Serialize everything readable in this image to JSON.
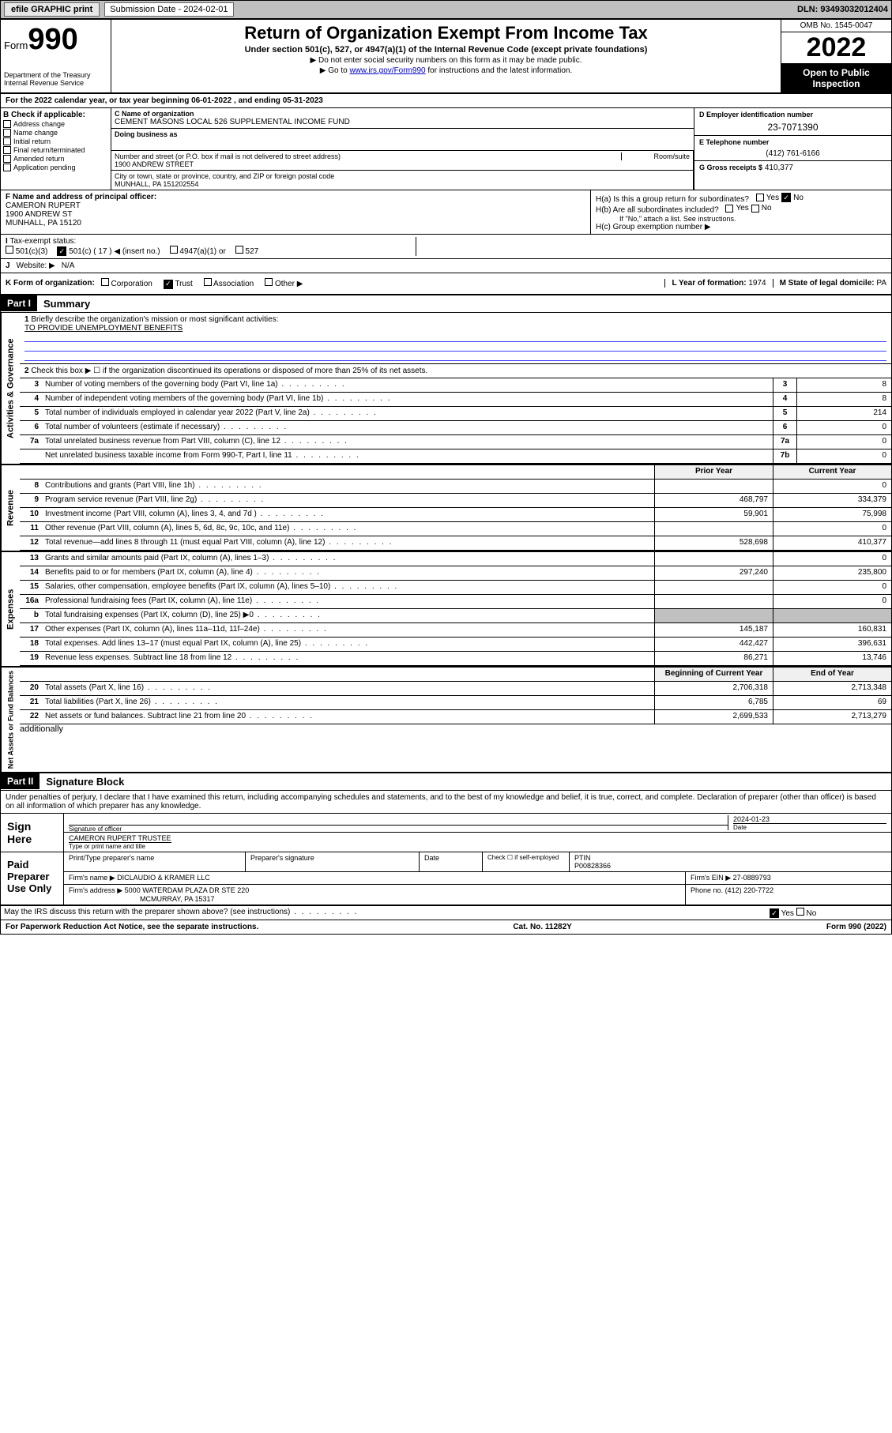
{
  "topbar": {
    "efile": "efile GRAPHIC print",
    "sub_label": "Submission Date - 2024-02-01",
    "dln": "DLN: 93493032012404"
  },
  "header": {
    "form_word": "Form",
    "form_num": "990",
    "dept": "Department of the Treasury",
    "irs": "Internal Revenue Service",
    "title": "Return of Organization Exempt From Income Tax",
    "sub": "Under section 501(c), 527, or 4947(a)(1) of the Internal Revenue Code (except private foundations)",
    "note1": "▶ Do not enter social security numbers on this form as it may be made public.",
    "note2_pre": "▶ Go to ",
    "note2_link": "www.irs.gov/Form990",
    "note2_post": " for instructions and the latest information.",
    "omb": "OMB No. 1545-0047",
    "year": "2022",
    "inspect": "Open to Public Inspection"
  },
  "A": "For the 2022 calendar year, or tax year beginning 06-01-2022    , and ending 05-31-2023",
  "B": {
    "hdr": "B Check if applicable:",
    "items": [
      "Address change",
      "Name change",
      "Initial return",
      "Final return/terminated",
      "Amended return",
      "Application pending"
    ]
  },
  "C": {
    "name_lbl": "C Name of organization",
    "name": "CEMENT MASONS LOCAL 526 SUPPLEMENTAL INCOME FUND",
    "dba_lbl": "Doing business as",
    "street_lbl": "Number and street (or P.O. box if mail is not delivered to street address)",
    "room_lbl": "Room/suite",
    "street": "1900 ANDREW STREET",
    "city_lbl": "City or town, state or province, country, and ZIP or foreign postal code",
    "city": "MUNHALL, PA  151202554"
  },
  "D": {
    "lbl": "D Employer identification number",
    "val": "23-7071390"
  },
  "E": {
    "lbl": "E Telephone number",
    "val": "(412) 761-6166"
  },
  "G": {
    "lbl": "G Gross receipts $",
    "val": "410,377"
  },
  "F": {
    "lbl": "F  Name and address of principal officer:",
    "name": "CAMERON RUPERT",
    "addr1": "1900 ANDREW ST",
    "addr2": "MUNHALL, PA  15120"
  },
  "H": {
    "a": "H(a)  Is this a group return for subordinates?",
    "b": "H(b)  Are all subordinates included?",
    "b_note": "If \"No,\" attach a list. See instructions.",
    "c": "H(c)  Group exemption number ▶"
  },
  "I": {
    "lbl": "Tax-exempt status:",
    "opts": [
      "501(c)(3)",
      "501(c) ( 17 ) ◀ (insert no.)",
      "4947(a)(1) or",
      "527"
    ]
  },
  "J": {
    "lbl": "Website: ▶",
    "val": "N/A"
  },
  "K": {
    "lbl": "K Form of organization:",
    "opts": [
      "Corporation",
      "Trust",
      "Association",
      "Other ▶"
    ]
  },
  "L": {
    "lbl": "L Year of formation:",
    "val": "1974"
  },
  "M": {
    "lbl": "M State of legal domicile:",
    "val": "PA"
  },
  "partI": {
    "hdr": "Part I",
    "title": "Summary",
    "line1_lbl": "Briefly describe the organization's mission or most significant activities:",
    "line1_val": "TO PROVIDE UNEMPLOYMENT BENEFITS",
    "line2": "Check this box ▶ ☐  if the organization discontinued its operations or disposed of more than 25% of its net assets."
  },
  "gov_lines": [
    {
      "n": "3",
      "d": "Number of voting members of the governing body (Part VI, line 1a)",
      "b": "3",
      "v": "8"
    },
    {
      "n": "4",
      "d": "Number of independent voting members of the governing body (Part VI, line 1b)",
      "b": "4",
      "v": "8"
    },
    {
      "n": "5",
      "d": "Total number of individuals employed in calendar year 2022 (Part V, line 2a)",
      "b": "5",
      "v": "214"
    },
    {
      "n": "6",
      "d": "Total number of volunteers (estimate if necessary)",
      "b": "6",
      "v": "0"
    },
    {
      "n": "7a",
      "d": "Total unrelated business revenue from Part VIII, column (C), line 12",
      "b": "7a",
      "v": "0"
    },
    {
      "n": "",
      "d": "Net unrelated business taxable income from Form 990-T, Part I, line 11",
      "b": "7b",
      "v": "0"
    }
  ],
  "col_hdrs": {
    "prior": "Prior Year",
    "current": "Current Year"
  },
  "rev_lines": [
    {
      "n": "8",
      "d": "Contributions and grants (Part VIII, line 1h)",
      "p": "",
      "c": "0"
    },
    {
      "n": "9",
      "d": "Program service revenue (Part VIII, line 2g)",
      "p": "468,797",
      "c": "334,379"
    },
    {
      "n": "10",
      "d": "Investment income (Part VIII, column (A), lines 3, 4, and 7d )",
      "p": "59,901",
      "c": "75,998"
    },
    {
      "n": "11",
      "d": "Other revenue (Part VIII, column (A), lines 5, 6d, 8c, 9c, 10c, and 11e)",
      "p": "",
      "c": "0"
    },
    {
      "n": "12",
      "d": "Total revenue—add lines 8 through 11 (must equal Part VIII, column (A), line 12)",
      "p": "528,698",
      "c": "410,377"
    }
  ],
  "exp_lines": [
    {
      "n": "13",
      "d": "Grants and similar amounts paid (Part IX, column (A), lines 1–3)",
      "p": "",
      "c": "0"
    },
    {
      "n": "14",
      "d": "Benefits paid to or for members (Part IX, column (A), line 4)",
      "p": "297,240",
      "c": "235,800"
    },
    {
      "n": "15",
      "d": "Salaries, other compensation, employee benefits (Part IX, column (A), lines 5–10)",
      "p": "",
      "c": "0"
    },
    {
      "n": "16a",
      "d": "Professional fundraising fees (Part IX, column (A), line 11e)",
      "p": "",
      "c": "0"
    },
    {
      "n": "b",
      "d": "Total fundraising expenses (Part IX, column (D), line 25) ▶0",
      "p": "grey",
      "c": "grey"
    },
    {
      "n": "17",
      "d": "Other expenses (Part IX, column (A), lines 11a–11d, 11f–24e)",
      "p": "145,187",
      "c": "160,831"
    },
    {
      "n": "18",
      "d": "Total expenses. Add lines 13–17 (must equal Part IX, column (A), line 25)",
      "p": "442,427",
      "c": "396,631"
    },
    {
      "n": "19",
      "d": "Revenue less expenses. Subtract line 18 from line 12",
      "p": "86,271",
      "c": "13,746"
    }
  ],
  "na_hdrs": {
    "beg": "Beginning of Current Year",
    "end": "End of Year"
  },
  "na_lines": [
    {
      "n": "20",
      "d": "Total assets (Part X, line 16)",
      "p": "2,706,318",
      "c": "2,713,348"
    },
    {
      "n": "21",
      "d": "Total liabilities (Part X, line 26)",
      "p": "6,785",
      "c": "69"
    },
    {
      "n": "22",
      "d": "Net assets or fund balances. Subtract line 21 from line 20",
      "p": "2,699,533",
      "c": "2,713,279"
    }
  ],
  "side_labels": {
    "gov": "Activities & Governance",
    "rev": "Revenue",
    "exp": "Expenses",
    "na": "Net Assets or Fund Balances"
  },
  "partII": {
    "hdr": "Part II",
    "title": "Signature Block",
    "penalty": "Under penalties of perjury, I declare that I have examined this return, including accompanying schedules and statements, and to the best of my knowledge and belief, it is true, correct, and complete. Declaration of preparer (other than officer) is based on all information of which preparer has any knowledge."
  },
  "sign": {
    "here": "Sign Here",
    "sig_lbl": "Signature of officer",
    "date_lbl": "Date",
    "date": "2024-01-23",
    "name": "CAMERON RUPERT TRUSTEE",
    "name_lbl": "Type or print name and title"
  },
  "paid": {
    "hdr": "Paid Preparer Use Only",
    "c1": "Print/Type preparer's name",
    "c2": "Preparer's signature",
    "c3": "Date",
    "c4_lbl": "Check ☐ if self-employed",
    "ptin_lbl": "PTIN",
    "ptin": "P00828366",
    "firm_lbl": "Firm's name    ▶",
    "firm": "DICLAUDIO & KRAMER LLC",
    "ein_lbl": "Firm's EIN ▶",
    "ein": "27-0889793",
    "addr_lbl": "Firm's address ▶",
    "addr": "5000 WATERDAM PLAZA DR STE 220",
    "addr2": "MCMURRAY, PA  15317",
    "phone_lbl": "Phone no.",
    "phone": "(412) 220-7722"
  },
  "discuss": "May the IRS discuss this return with the preparer shown above? (see instructions)",
  "footer": {
    "left": "For Paperwork Reduction Act Notice, see the separate instructions.",
    "mid": "Cat. No. 11282Y",
    "right": "Form 990 (2022)"
  }
}
